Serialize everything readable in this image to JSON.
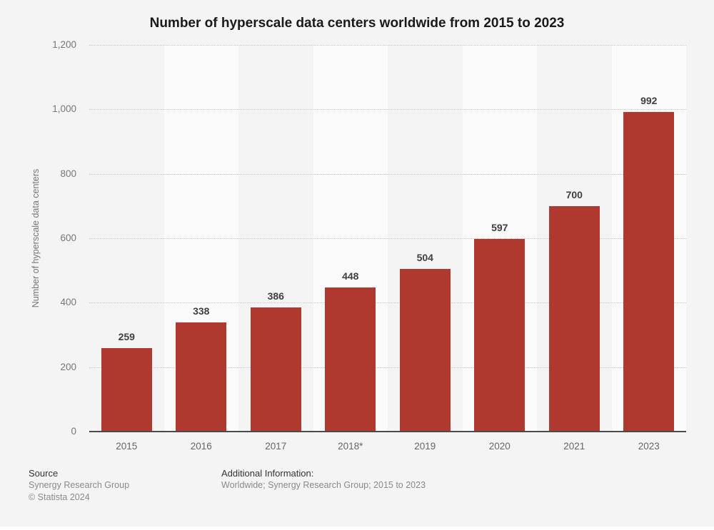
{
  "chart_data": {
    "type": "bar",
    "title": "Number of hyperscale data centers worldwide from 2015 to 2023",
    "categories": [
      "2015",
      "2016",
      "2017",
      "2018*",
      "2019",
      "2020",
      "2021",
      "2023"
    ],
    "values": [
      259,
      338,
      386,
      448,
      504,
      597,
      700,
      992
    ],
    "xlabel": "",
    "ylabel": "Number of hyperscale data centers",
    "ylim": [
      0,
      1200
    ],
    "yticks": [
      0,
      200,
      400,
      600,
      800,
      1000,
      1200
    ],
    "ytick_labels": [
      "0",
      "200",
      "400",
      "600",
      "800",
      "1,000",
      "1,200"
    ],
    "grid": "horizontal-dotted",
    "legend": "none",
    "bar_color": "#af392f",
    "band_color_dark": "#f4f4f4",
    "band_color_light": "#fafafa"
  },
  "footer": {
    "source_label": "Source",
    "source_name": "Synergy Research Group",
    "copyright": "© Statista 2024",
    "additional_info_label": "Additional Information:",
    "additional_info": "Worldwide; Synergy Research Group; 2015 to 2023"
  }
}
